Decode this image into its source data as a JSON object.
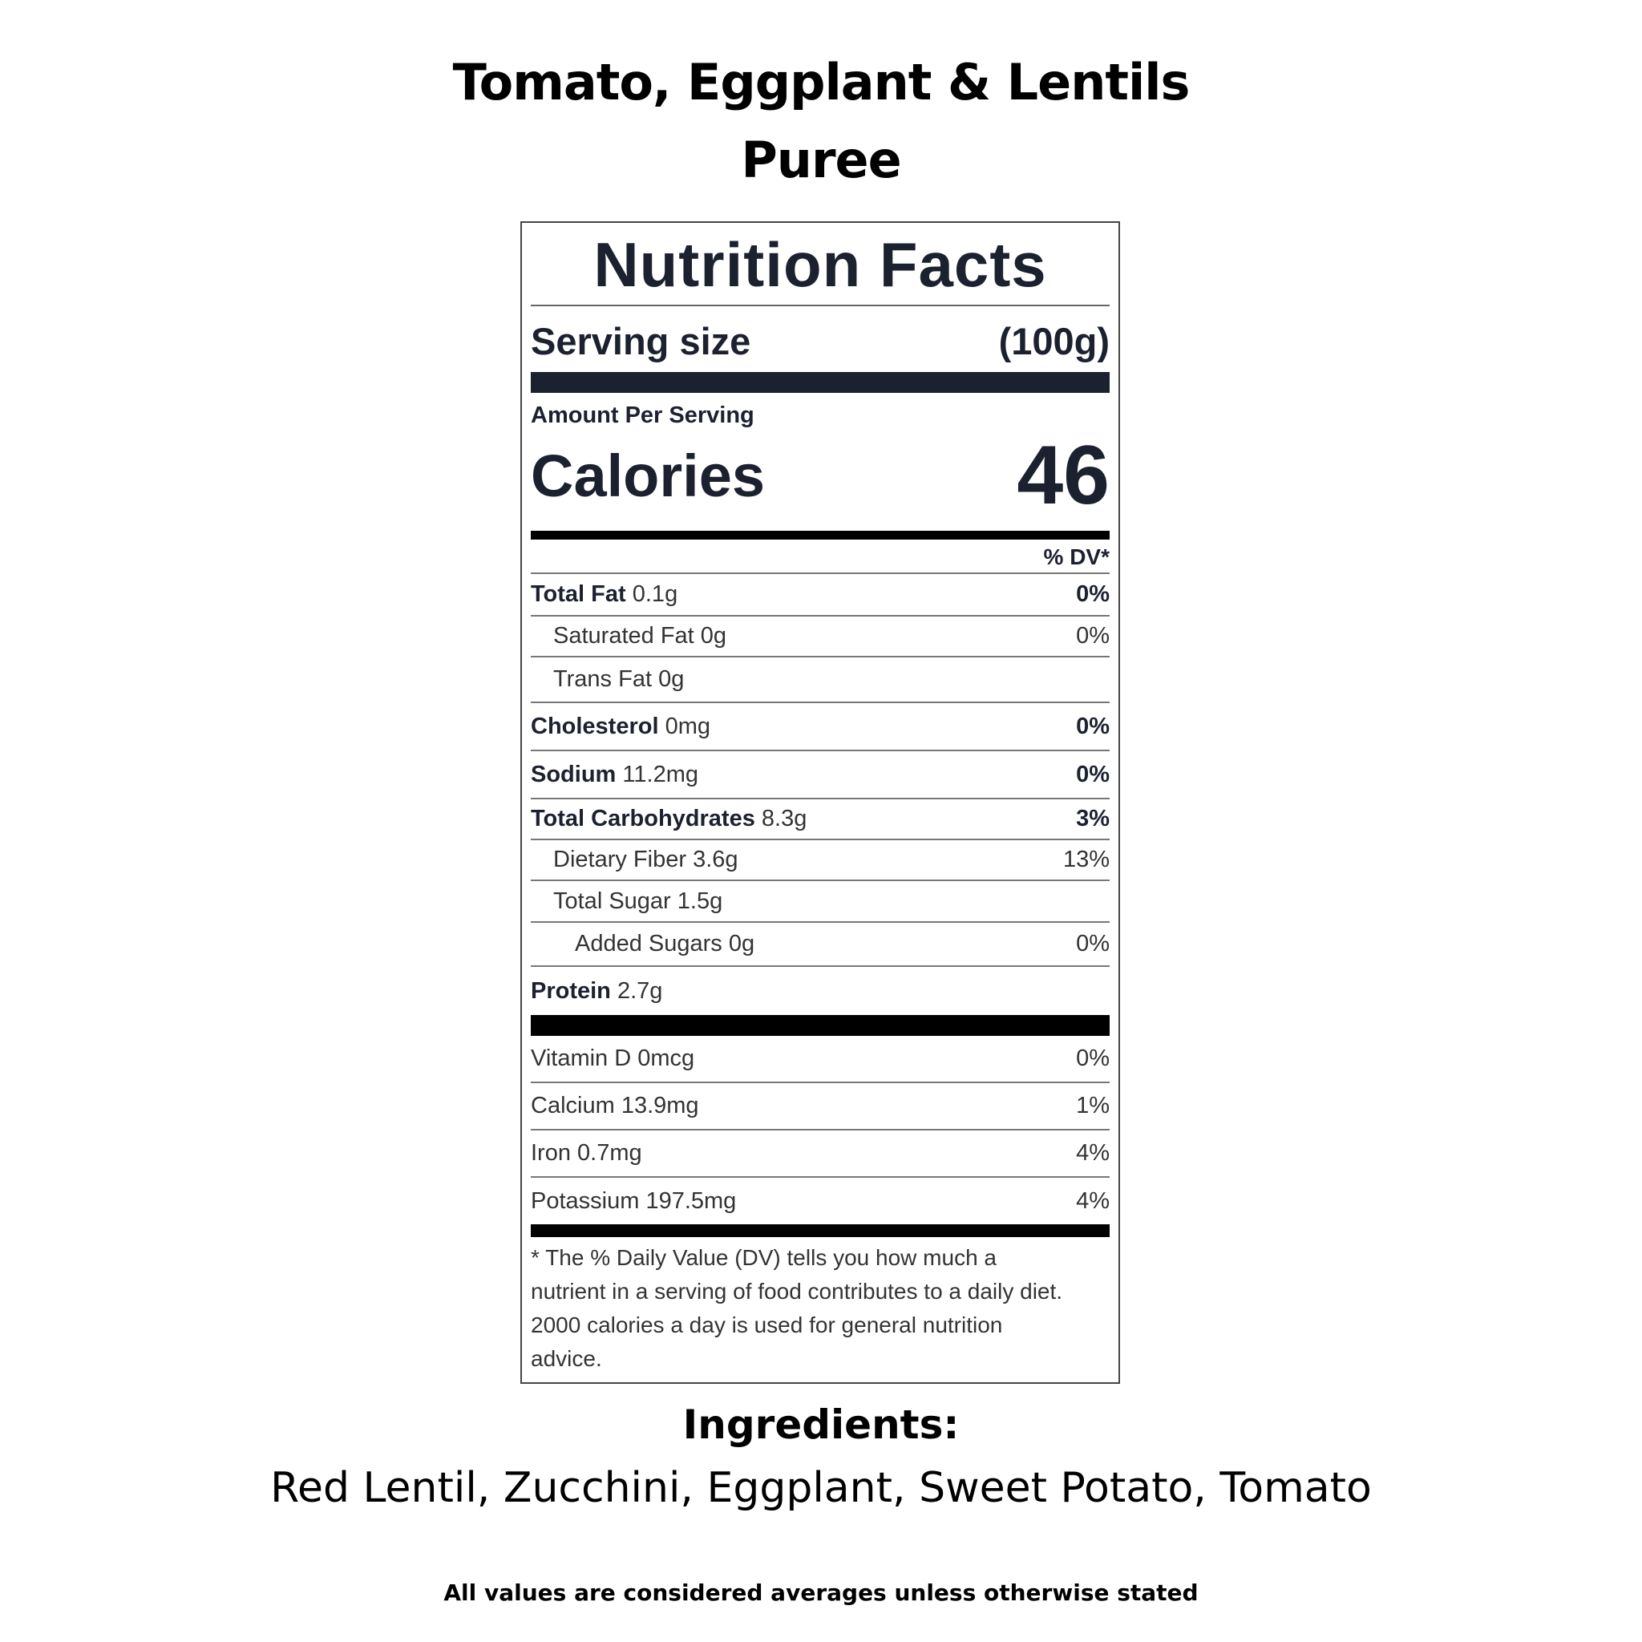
{
  "product": {
    "title_line1": "Tomato, Eggplant & Lentils",
    "title_line2": "Puree"
  },
  "label": {
    "heading": "Nutrition Facts",
    "serving_size_label": "Serving size",
    "serving_size_value": "(100g)",
    "amount_per_serving": "Amount Per Serving",
    "calories_label": "Calories",
    "calories_value": "46",
    "dv_header": "% DV*",
    "rows": [
      {
        "name": "Total Fat",
        "amount": "0.1g",
        "dv": "0%"
      },
      {
        "name": "Saturated Fat",
        "amount": "0g",
        "dv": "0%"
      },
      {
        "name": "Trans Fat",
        "amount": "0g",
        "dv": ""
      },
      {
        "name": "Cholesterol",
        "amount": "0mg",
        "dv": "0%"
      },
      {
        "name": "Sodium",
        "amount": "11.2mg",
        "dv": "0%"
      },
      {
        "name": "Total Carbohydrates",
        "amount": "8.3g",
        "dv": "3%"
      },
      {
        "name": "Dietary Fiber",
        "amount": "3.6g",
        "dv": "13%"
      },
      {
        "name": "Total Sugar",
        "amount": "1.5g",
        "dv": ""
      },
      {
        "name": "Added Sugars",
        "amount": "0g",
        "dv": "0%"
      },
      {
        "name": "Protein",
        "amount": "2.7g",
        "dv": ""
      }
    ],
    "micros": [
      {
        "name": "Vitamin D",
        "amount": "0mcg",
        "dv": "0%"
      },
      {
        "name": "Calcium",
        "amount": "13.9mg",
        "dv": "1%"
      },
      {
        "name": "Iron",
        "amount": "0.7mg",
        "dv": "4%"
      },
      {
        "name": "Potassium",
        "amount": "197.5mg",
        "dv": "4%"
      }
    ],
    "footnote": [
      "* The % Daily Value (DV) tells you how much a",
      "nutrient in a serving of food contributes to a daily diet.",
      "2000 calories a day is used for general nutrition",
      "advice."
    ]
  },
  "ingredients": {
    "heading": "Ingredients:",
    "list": "Red Lentil, Zucchini, Eggplant, Sweet Potato, Tomato"
  },
  "disclaimer": "All values are considered averages unless otherwise stated"
}
